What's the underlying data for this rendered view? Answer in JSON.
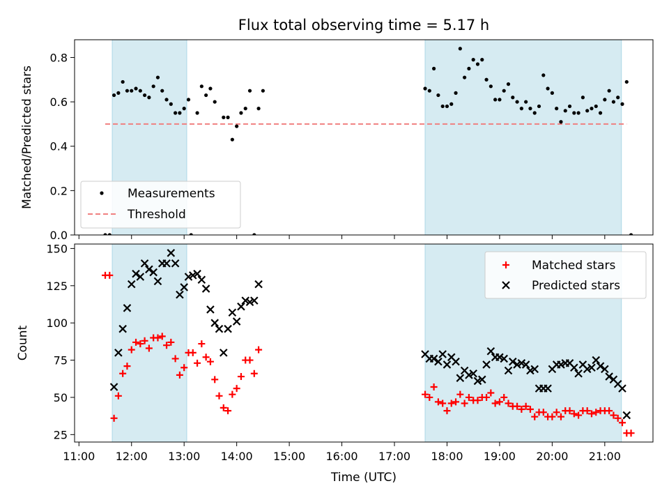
{
  "title": "Flux total observing time = 5.17 h",
  "colors": {
    "shade": "#add8e6",
    "measurement": "#000000",
    "threshold": "#f08080",
    "matched": "#ff0000",
    "predicted": "#000000"
  },
  "chart_data": [
    {
      "type": "scatter",
      "panel": "top",
      "ylabel": "Matched/Predicted stars",
      "xlabel": "",
      "xlim": [
        "10:55",
        "21:55"
      ],
      "ylim": [
        0,
        0.88
      ],
      "y_ticks": [
        "0.0",
        "0.2",
        "0.4",
        "0.6",
        "0.8"
      ],
      "x_ticks": [
        "11:00",
        "12:00",
        "13:00",
        "14:00",
        "15:00",
        "16:00",
        "17:00",
        "18:00",
        "19:00",
        "20:00",
        "21:00"
      ],
      "show_x_tick_labels": false,
      "grid": false,
      "legend": {
        "placement": "lower-left",
        "entries": [
          "Measurements",
          "Threshold"
        ]
      },
      "shaded_intervals": [
        [
          "11:38",
          "13:03"
        ],
        [
          "17:35",
          "21:19"
        ]
      ],
      "threshold": {
        "name": "Threshold",
        "y": 0.5,
        "x_range": [
          "11:30",
          "21:25"
        ]
      },
      "series": [
        {
          "name": "Measurements",
          "points": [
            [
              "11:30",
              0.0
            ],
            [
              "11:35",
              0.0
            ],
            [
              "11:40",
              0.63
            ],
            [
              "11:45",
              0.64
            ],
            [
              "11:50",
              0.69
            ],
            [
              "11:55",
              0.65
            ],
            [
              "12:00",
              0.65
            ],
            [
              "12:05",
              0.66
            ],
            [
              "12:10",
              0.65
            ],
            [
              "12:15",
              0.63
            ],
            [
              "12:20",
              0.62
            ],
            [
              "12:25",
              0.67
            ],
            [
              "12:30",
              0.71
            ],
            [
              "12:35",
              0.65
            ],
            [
              "12:40",
              0.61
            ],
            [
              "12:45",
              0.59
            ],
            [
              "12:50",
              0.55
            ],
            [
              "12:55",
              0.55
            ],
            [
              "13:00",
              0.57
            ],
            [
              "13:05",
              0.61
            ],
            [
              "13:08",
              0.0
            ],
            [
              "13:15",
              0.55
            ],
            [
              "13:20",
              0.67
            ],
            [
              "13:25",
              0.63
            ],
            [
              "13:30",
              0.66
            ],
            [
              "13:35",
              0.6
            ],
            [
              "13:45",
              0.53
            ],
            [
              "13:50",
              0.53
            ],
            [
              "13:55",
              0.43
            ],
            [
              "14:00",
              0.49
            ],
            [
              "14:05",
              0.55
            ],
            [
              "14:10",
              0.57
            ],
            [
              "14:15",
              0.65
            ],
            [
              "14:20",
              0.0
            ],
            [
              "14:25",
              0.57
            ],
            [
              "14:30",
              0.65
            ],
            [
              "17:35",
              0.66
            ],
            [
              "17:40",
              0.65
            ],
            [
              "17:45",
              0.75
            ],
            [
              "17:50",
              0.63
            ],
            [
              "17:55",
              0.58
            ],
            [
              "18:00",
              0.58
            ],
            [
              "18:05",
              0.59
            ],
            [
              "18:10",
              0.64
            ],
            [
              "18:15",
              0.84
            ],
            [
              "18:20",
              0.71
            ],
            [
              "18:25",
              0.75
            ],
            [
              "18:30",
              0.79
            ],
            [
              "18:35",
              0.77
            ],
            [
              "18:40",
              0.79
            ],
            [
              "18:45",
              0.7
            ],
            [
              "18:50",
              0.67
            ],
            [
              "18:55",
              0.61
            ],
            [
              "19:00",
              0.61
            ],
            [
              "19:05",
              0.65
            ],
            [
              "19:10",
              0.68
            ],
            [
              "19:15",
              0.62
            ],
            [
              "19:20",
              0.6
            ],
            [
              "19:25",
              0.57
            ],
            [
              "19:30",
              0.6
            ],
            [
              "19:35",
              0.57
            ],
            [
              "19:40",
              0.55
            ],
            [
              "19:45",
              0.58
            ],
            [
              "19:50",
              0.72
            ],
            [
              "19:55",
              0.66
            ],
            [
              "20:00",
              0.64
            ],
            [
              "20:05",
              0.57
            ],
            [
              "20:10",
              0.51
            ],
            [
              "20:15",
              0.56
            ],
            [
              "20:20",
              0.58
            ],
            [
              "20:25",
              0.55
            ],
            [
              "20:30",
              0.55
            ],
            [
              "20:35",
              0.62
            ],
            [
              "20:40",
              0.56
            ],
            [
              "20:45",
              0.57
            ],
            [
              "20:50",
              0.58
            ],
            [
              "20:55",
              0.55
            ],
            [
              "21:00",
              0.61
            ],
            [
              "21:05",
              0.65
            ],
            [
              "21:10",
              0.6
            ],
            [
              "21:15",
              0.62
            ],
            [
              "21:20",
              0.59
            ],
            [
              "21:25",
              0.69
            ],
            [
              "21:30",
              0.0
            ]
          ]
        }
      ]
    },
    {
      "type": "scatter",
      "panel": "bottom",
      "ylabel": "Count",
      "xlabel": "Time (UTC)",
      "xlim": [
        "10:55",
        "21:55"
      ],
      "ylim": [
        20,
        153
      ],
      "y_ticks": [
        "25",
        "50",
        "75",
        "100",
        "125",
        "150"
      ],
      "x_ticks": [
        "11:00",
        "12:00",
        "13:00",
        "14:00",
        "15:00",
        "16:00",
        "17:00",
        "18:00",
        "19:00",
        "20:00",
        "21:00"
      ],
      "grid": false,
      "legend": {
        "placement": "top-right",
        "entries": [
          "Matched stars",
          "Predicted stars"
        ]
      },
      "shaded_intervals": [
        [
          "11:38",
          "13:03"
        ],
        [
          "17:35",
          "21:19"
        ]
      ],
      "series": [
        {
          "name": "Matched stars",
          "marker": "plus",
          "points": [
            [
              "11:30",
              132
            ],
            [
              "11:35",
              132
            ],
            [
              "11:40",
              36
            ],
            [
              "11:45",
              51
            ],
            [
              "11:50",
              66
            ],
            [
              "11:55",
              71
            ],
            [
              "12:00",
              82
            ],
            [
              "12:05",
              87
            ],
            [
              "12:10",
              86
            ],
            [
              "12:15",
              88
            ],
            [
              "12:20",
              83
            ],
            [
              "12:25",
              90
            ],
            [
              "12:30",
              90
            ],
            [
              "12:35",
              91
            ],
            [
              "12:40",
              85
            ],
            [
              "12:45",
              87
            ],
            [
              "12:50",
              76
            ],
            [
              "12:55",
              65
            ],
            [
              "13:00",
              70
            ],
            [
              "13:05",
              80
            ],
            [
              "13:10",
              80
            ],
            [
              "13:15",
              73
            ],
            [
              "13:20",
              86
            ],
            [
              "13:25",
              77
            ],
            [
              "13:30",
              74
            ],
            [
              "13:35",
              62
            ],
            [
              "13:40",
              51
            ],
            [
              "13:45",
              43
            ],
            [
              "13:50",
              41
            ],
            [
              "13:55",
              52
            ],
            [
              "14:00",
              56
            ],
            [
              "14:05",
              64
            ],
            [
              "14:10",
              75
            ],
            [
              "14:15",
              75
            ],
            [
              "14:20",
              66
            ],
            [
              "14:25",
              82
            ],
            [
              "17:35",
              52
            ],
            [
              "17:40",
              50
            ],
            [
              "17:45",
              57
            ],
            [
              "17:50",
              47
            ],
            [
              "17:55",
              46
            ],
            [
              "18:00",
              41
            ],
            [
              "18:05",
              46
            ],
            [
              "18:10",
              47
            ],
            [
              "18:15",
              52
            ],
            [
              "18:20",
              46
            ],
            [
              "18:25",
              50
            ],
            [
              "18:30",
              48
            ],
            [
              "18:35",
              48
            ],
            [
              "18:40",
              50
            ],
            [
              "18:45",
              50
            ],
            [
              "18:50",
              53
            ],
            [
              "18:55",
              46
            ],
            [
              "19:00",
              47
            ],
            [
              "19:05",
              50
            ],
            [
              "19:10",
              46
            ],
            [
              "19:15",
              44
            ],
            [
              "19:20",
              44
            ],
            [
              "19:25",
              42
            ],
            [
              "19:30",
              44
            ],
            [
              "19:35",
              42
            ],
            [
              "19:40",
              37
            ],
            [
              "19:45",
              40
            ],
            [
              "19:50",
              40
            ],
            [
              "19:55",
              37
            ],
            [
              "20:00",
              37
            ],
            [
              "20:05",
              40
            ],
            [
              "20:10",
              37
            ],
            [
              "20:15",
              41
            ],
            [
              "20:20",
              41
            ],
            [
              "20:25",
              39
            ],
            [
              "20:30",
              38
            ],
            [
              "20:35",
              41
            ],
            [
              "20:40",
              41
            ],
            [
              "20:45",
              39
            ],
            [
              "20:50",
              40
            ],
            [
              "20:55",
              41
            ],
            [
              "21:00",
              41
            ],
            [
              "21:05",
              41
            ],
            [
              "21:10",
              38
            ],
            [
              "21:15",
              36
            ],
            [
              "21:20",
              33
            ],
            [
              "21:25",
              26
            ],
            [
              "21:30",
              26
            ]
          ]
        },
        {
          "name": "Predicted stars",
          "marker": "x",
          "points": [
            [
              "11:40",
              57
            ],
            [
              "11:45",
              80
            ],
            [
              "11:50",
              96
            ],
            [
              "11:55",
              110
            ],
            [
              "12:00",
              126
            ],
            [
              "12:05",
              133
            ],
            [
              "12:10",
              131
            ],
            [
              "12:15",
              140
            ],
            [
              "12:20",
              136
            ],
            [
              "12:25",
              134
            ],
            [
              "12:30",
              128
            ],
            [
              "12:35",
              140
            ],
            [
              "12:40",
              140
            ],
            [
              "12:45",
              147
            ],
            [
              "12:50",
              140
            ],
            [
              "12:55",
              119
            ],
            [
              "13:00",
              124
            ],
            [
              "13:05",
              131
            ],
            [
              "13:10",
              132
            ],
            [
              "13:15",
              133
            ],
            [
              "13:20",
              129
            ],
            [
              "13:25",
              123
            ],
            [
              "13:30",
              109
            ],
            [
              "13:35",
              100
            ],
            [
              "13:40",
              96
            ],
            [
              "13:45",
              80
            ],
            [
              "13:50",
              96
            ],
            [
              "13:55",
              107
            ],
            [
              "14:00",
              101
            ],
            [
              "14:05",
              111
            ],
            [
              "14:10",
              115
            ],
            [
              "14:15",
              114
            ],
            [
              "14:20",
              115
            ],
            [
              "14:25",
              126
            ],
            [
              "17:35",
              79
            ],
            [
              "17:40",
              76
            ],
            [
              "17:45",
              76
            ],
            [
              "17:50",
              74
            ],
            [
              "17:55",
              79
            ],
            [
              "18:00",
              72
            ],
            [
              "18:05",
              77
            ],
            [
              "18:10",
              74
            ],
            [
              "18:15",
              63
            ],
            [
              "18:20",
              68
            ],
            [
              "18:25",
              65
            ],
            [
              "18:30",
              66
            ],
            [
              "18:35",
              61
            ],
            [
              "18:40",
              62
            ],
            [
              "18:45",
              72
            ],
            [
              "18:50",
              81
            ],
            [
              "18:55",
              77
            ],
            [
              "19:00",
              77
            ],
            [
              "19:05",
              76
            ],
            [
              "19:10",
              68
            ],
            [
              "19:15",
              74
            ],
            [
              "19:20",
              72
            ],
            [
              "19:25",
              73
            ],
            [
              "19:30",
              72
            ],
            [
              "19:35",
              68
            ],
            [
              "19:40",
              69
            ],
            [
              "19:45",
              56
            ],
            [
              "19:50",
              56
            ],
            [
              "19:55",
              56
            ],
            [
              "20:00",
              69
            ],
            [
              "20:05",
              72
            ],
            [
              "20:10",
              72
            ],
            [
              "20:15",
              73
            ],
            [
              "20:20",
              73
            ],
            [
              "20:25",
              70
            ],
            [
              "20:30",
              66
            ],
            [
              "20:35",
              72
            ],
            [
              "20:40",
              69
            ],
            [
              "20:45",
              70
            ],
            [
              "20:50",
              75
            ],
            [
              "20:55",
              71
            ],
            [
              "21:00",
              69
            ],
            [
              "21:05",
              64
            ],
            [
              "21:10",
              62
            ],
            [
              "21:15",
              59
            ],
            [
              "21:20",
              56
            ],
            [
              "21:25",
              38
            ]
          ]
        }
      ]
    }
  ]
}
